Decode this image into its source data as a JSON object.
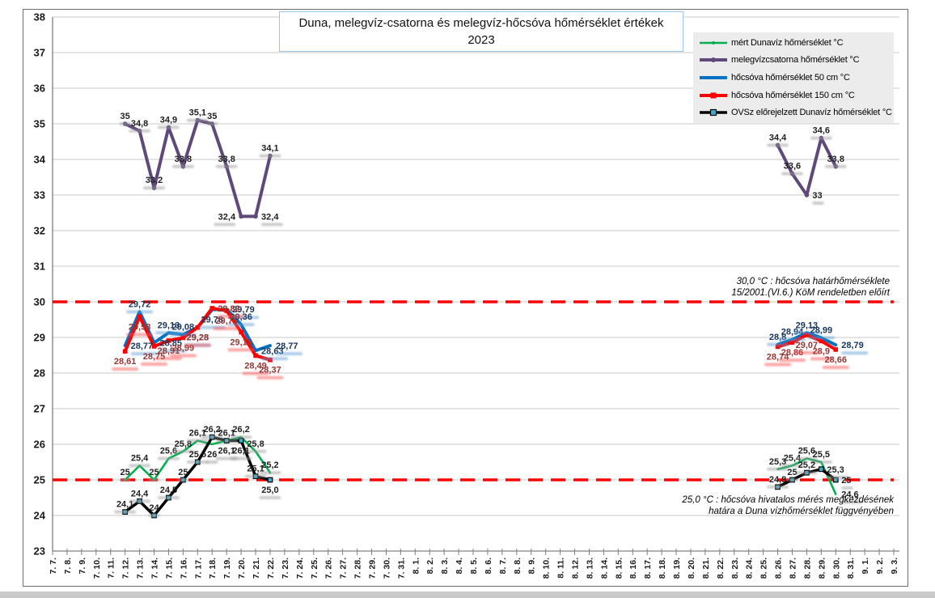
{
  "window": {
    "background": "#FFFFFF",
    "chart_border_color": "#6E6E6E",
    "bottom_strip_color": "#C9C9C9"
  },
  "chart_data": {
    "type": "line",
    "title_lines": [
      "Duna, melegvíz-csatorna és melegvíz-hőcsóva hőmérséklet értékek",
      "2023"
    ],
    "grid": true,
    "legend_position": "top-right",
    "y_axis": {
      "min": 23,
      "max": 38,
      "step": 1,
      "ticks": [
        23,
        24,
        25,
        26,
        27,
        28,
        29,
        30,
        31,
        32,
        33,
        34,
        35,
        36,
        37,
        38
      ]
    },
    "x_categories": [
      "7. 7.",
      "7. 8.",
      "7. 9.",
      "7. 10.",
      "7. 11.",
      "7. 12.",
      "7. 13.",
      "7. 14.",
      "7. 15.",
      "7. 16.",
      "7. 17.",
      "7. 18.",
      "7. 19.",
      "7. 20.",
      "7. 21.",
      "7. 22.",
      "7. 23.",
      "7. 24.",
      "7. 25.",
      "7. 26.",
      "7. 27.",
      "7. 28.",
      "7. 29.",
      "7. 30.",
      "7. 31.",
      "8. 1.",
      "8. 2.",
      "8. 3.",
      "8. 4.",
      "8. 5.",
      "8. 6.",
      "8. 7.",
      "8. 8.",
      "8. 9.",
      "8. 10.",
      "8. 11.",
      "8. 12.",
      "8. 13.",
      "8. 14.",
      "8. 15.",
      "8. 16.",
      "8. 17.",
      "8. 18.",
      "8. 19.",
      "8. 20.",
      "8. 21.",
      "8. 22.",
      "8. 23.",
      "8. 24.",
      "8. 25.",
      "8. 26.",
      "8. 27.",
      "8. 28.",
      "8. 29.",
      "8. 30.",
      "8. 31.",
      "9. 1.",
      "9. 2.",
      "9. 3."
    ],
    "limit_lines": [
      {
        "value": 30,
        "color": "#FF0000",
        "lines": [
          "30,0 °C : hőcsóva határhőmérséklete",
          "15/2001.(VI.6.) KöM rendeletben előírt"
        ]
      },
      {
        "value": 25,
        "color": "#FF0000",
        "lines": [
          "25,0 °C : hőcsóva hivatalos mérés megkezdésének",
          "határa a Duna vízhőmérséklet függvényében"
        ]
      }
    ],
    "series": [
      {
        "name": "mért Dunavíz hőmérséklet °C",
        "color": "#00B050",
        "width": 2.6,
        "marker": "none",
        "label_color": "#1f1f1f",
        "smudge_color": "#999999",
        "segments": [
          {
            "start": 5,
            "values": [
              25,
              25.4,
              25,
              25.6,
              25.8,
              26.1,
              26,
              26.1,
              26.2,
              25.8,
              25.2
            ],
            "labels": [
              "25",
              "25,4",
              "25",
              "25,6",
              "25,8",
              "26,1",
              "26",
              "26,1",
              "26,2",
              "25,8",
              "25,2"
            ],
            "pos": [
              "a",
              "a",
              "a",
              "a",
              "a",
              "a",
              "b",
              "a",
              "a",
              "a",
              "a"
            ]
          },
          {
            "start": 50,
            "values": [
              25.3,
              25.4,
              25.6,
              25.5,
              24.6
            ],
            "labels": [
              "25,3",
              "25,4",
              "25,6",
              "25,5",
              "24,6"
            ],
            "pos": [
              "a",
              "a",
              "a",
              "a",
              "r"
            ]
          }
        ]
      },
      {
        "name": "melegvízcsatorna hőmérséklet °C",
        "color": "#5F497A",
        "width": 4,
        "marker": "circle",
        "label_color": "#1f1f1f",
        "smudge_color": "#999999",
        "segments": [
          {
            "start": 5,
            "values": [
              35,
              34.8,
              33.2,
              34.9,
              33.8,
              35.1,
              35,
              33.8,
              32.4,
              32.4,
              34.1
            ],
            "labels": [
              "35",
              "34,8",
              "33,2",
              "34,9",
              "33,8",
              "35,1",
              "35",
              "33,8",
              "32,4",
              "32,4",
              "34,1"
            ],
            "pos": [
              "a",
              "a",
              "a",
              "a",
              "a",
              "a",
              "a",
              "a",
              "l",
              "r",
              "a"
            ]
          },
          {
            "start": 50,
            "values": [
              34.4,
              33.6,
              33,
              34.6,
              33.8
            ],
            "labels": [
              "34,4",
              "33,6",
              "33",
              "34,6",
              "33,8"
            ],
            "pos": [
              "a",
              "a",
              "r",
              "a",
              "a"
            ]
          }
        ]
      },
      {
        "name": "hőcsóva hőmérséklet 50 cm °C",
        "color": "#0070C0",
        "width": 4,
        "marker": "none",
        "label_color": "#17375E",
        "smudge_color": "#5B9BD5",
        "segments": [
          {
            "start": 5,
            "values": [
              28.77,
              29.72,
              28.85,
              29.13,
              29.08,
              29.28,
              29.78,
              29.79,
              29.36,
              28.63,
              28.77
            ],
            "labels": [
              "28,77",
              "29,72",
              "28,85",
              "29,13",
              "29,08",
              "29,28",
              "29,78",
              "29,79",
              "29,36",
              "28,63",
              "28,77"
            ],
            "pos": [
              "r",
              "a",
              "r",
              "a",
              "a",
              "b",
              "b",
              "r",
              "a",
              "r",
              "r"
            ]
          },
          {
            "start": 50,
            "values": [
              28.8,
              28.94,
              29.13,
              28.99,
              28.79
            ],
            "labels": [
              "28,8",
              "28,94",
              "29,13",
              "28,99",
              "28,79"
            ],
            "pos": [
              "a",
              "a",
              "a",
              "a",
              "r"
            ]
          }
        ]
      },
      {
        "name": "hőcsóva hőmérséklet 150 cm °C",
        "color": "#FF0000",
        "width": 4,
        "marker": "square",
        "marker_fill": "#FF0000",
        "label_color": "#953735",
        "smudge_color": "#FF5050",
        "segments": [
          {
            "start": 5,
            "values": [
              28.61,
              29.58,
              28.75,
              28.91,
              28.99,
              29.28,
              29.82,
              29.75,
              29.15,
              28.49,
              28.37
            ],
            "labels": [
              "28,61",
              "29,58",
              "28,75",
              "28,91",
              "28,99",
              "29,28",
              "29,82",
              "29,75",
              "29,15",
              "28,49",
              "28,37"
            ],
            "pos": [
              "b",
              "b",
              "b",
              "b",
              "b",
              "b",
              "r",
              "b",
              "b",
              "b",
              "b"
            ]
          },
          {
            "start": 50,
            "values": [
              28.74,
              28.86,
              29.07,
              28.9,
              28.66
            ],
            "labels": [
              "28,74",
              "28,86",
              "29,07",
              "28,9",
              "28,66"
            ],
            "pos": [
              "b",
              "b",
              "b",
              "b",
              "b"
            ]
          }
        ]
      },
      {
        "name": "OVSz előrejelzett Dunavíz hőmérséklet °C",
        "color": "#000000",
        "width": 3.5,
        "marker": "square",
        "marker_fill": "#41AACB",
        "marker_stroke": "#000000",
        "label_color": "#1f1f1f",
        "smudge_color": "#999999",
        "segments": [
          {
            "start": 5,
            "values": [
              24.1,
              24.4,
              24,
              24.5,
              25,
              25.5,
              26.2,
              26.1,
              26.1,
              25.1,
              25.0
            ],
            "labels": [
              "24,1",
              "24,4",
              "24",
              "24,5",
              "25",
              "25,5",
              "26,2",
              "26,1",
              "26,1",
              "25,1",
              "25,0"
            ],
            "pos": [
              "a",
              "a",
              "a",
              "a",
              "a",
              "a",
              "a",
              "b",
              "b",
              "a",
              "b"
            ]
          },
          {
            "start": 50,
            "values": [
              24.8,
              25,
              25.2,
              25.3,
              25
            ],
            "labels": [
              "24,8",
              "25",
              "25,2",
              "25,3",
              "25"
            ],
            "pos": [
              "a",
              "a",
              "a",
              "r",
              "r"
            ]
          }
        ]
      }
    ]
  }
}
